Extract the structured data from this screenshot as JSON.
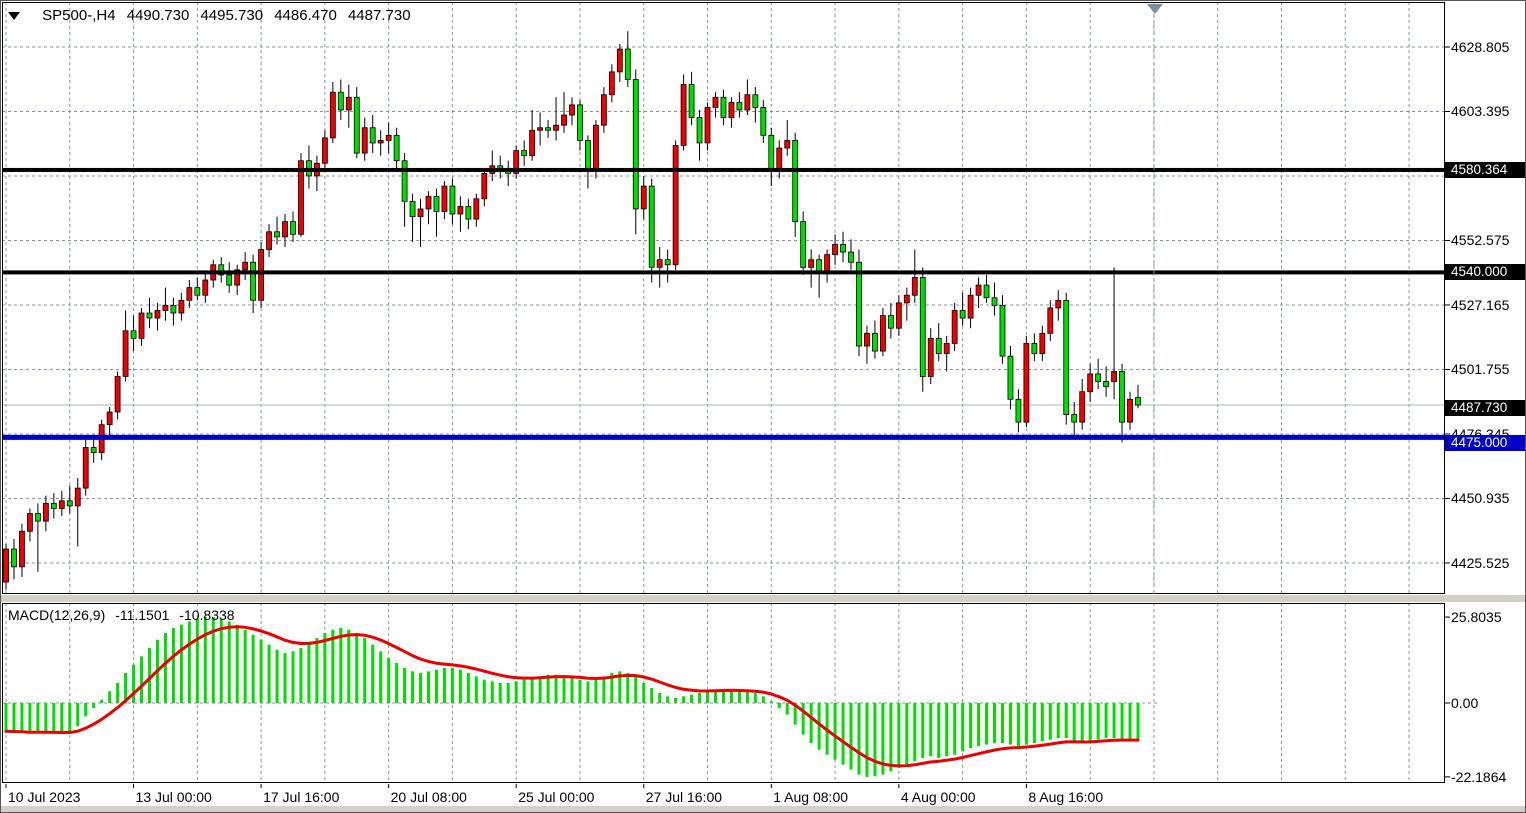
{
  "title_bar": {
    "symbol_period": "SP500-,H4",
    "open": "4490.730",
    "high": "4495.730",
    "low": "4486.470",
    "close": "4487.730"
  },
  "macd_panel": {
    "label": "MACD(12,26,9)",
    "macd_value": "-11.1501",
    "signal_value": "-10.8338",
    "y_ticks": [
      "25.8035",
      "0.00",
      "-22.1864"
    ],
    "y_tick_values": [
      25.8035,
      0,
      -22.1864
    ]
  },
  "price_axis": {
    "ticks": [
      4628.805,
      4603.395,
      4552.575,
      4527.165,
      4501.755,
      4476.345,
      4450.935,
      4425.525
    ],
    "hidden_grid_tick": 4577.985,
    "badges": [
      {
        "text": "4580.364",
        "value": 4580.364,
        "bg": "#000000",
        "dy": 0,
        "kind": "level"
      },
      {
        "text": "4540.000",
        "value": 4540.0,
        "bg": "#000000",
        "dy": 0,
        "kind": "level"
      },
      {
        "text": "4487.730",
        "value": 4487.73,
        "bg": "#000000",
        "dy": 3,
        "kind": "last-price"
      },
      {
        "text": "4475.000",
        "value": 4475.0,
        "bg": "#0000C8",
        "dy": 6,
        "kind": "level"
      }
    ]
  },
  "time_axis": {
    "labels": [
      {
        "text": "10 Jul 2023",
        "bar": 0
      },
      {
        "text": "13 Jul 00:00",
        "bar": 16
      },
      {
        "text": "17 Jul 16:00",
        "bar": 32
      },
      {
        "text": "20 Jul 08:00",
        "bar": 48
      },
      {
        "text": "25 Jul 00:00",
        "bar": 64
      },
      {
        "text": "27 Jul 16:00",
        "bar": 80
      },
      {
        "text": "1 Aug 08:00",
        "bar": 96
      },
      {
        "text": "4 Aug 00:00",
        "bar": 112
      },
      {
        "text": "8 Aug 16:00",
        "bar": 128
      }
    ]
  },
  "colors": {
    "bull": "#F00000",
    "bear": "#00DE00",
    "wick": "#000000",
    "grid": "#8494A6",
    "level_line": "#000000",
    "support_line": "#0000C8",
    "last_price_line": "#A9B5C0",
    "macd_hist": "#00DE00",
    "macd_signal": "#ED0000",
    "separator": "#D4D0C8",
    "pane_border": "#000000"
  },
  "chart_data": {
    "type": "candlestick_with_macd",
    "symbol": "SP500-",
    "timeframe": "H4",
    "last_price": 4487.73,
    "price_levels": [
      {
        "value": 4580.364,
        "color": "#000000",
        "thickness": 4
      },
      {
        "value": 4540.0,
        "color": "#000000",
        "thickness": 4
      },
      {
        "value": 4475.0,
        "color": "#0000C8",
        "thickness": 5
      }
    ],
    "price_axis_range": {
      "top": 4646.5,
      "bottom": 4412.0
    },
    "bars": [
      [
        4418,
        4433,
        4415,
        4431
      ],
      [
        4431,
        4435,
        4419,
        4424
      ],
      [
        4424,
        4441,
        4420,
        4438
      ],
      [
        4438,
        4447,
        4434,
        4445
      ],
      [
        4445,
        4449,
        4422,
        4442
      ],
      [
        4442,
        4452,
        4438,
        4449
      ],
      [
        4449,
        4453,
        4443,
        4447
      ],
      [
        4447,
        4454,
        4444,
        4450
      ],
      [
        4450,
        4456,
        4445,
        4448
      ],
      [
        4448,
        4459,
        4432,
        4455
      ],
      [
        4455,
        4474,
        4452,
        4471
      ],
      [
        4471,
        4476,
        4465,
        4469
      ],
      [
        4469,
        4482,
        4466,
        4480
      ],
      [
        4480,
        4487,
        4475,
        4485
      ],
      [
        4485,
        4501,
        4482,
        4499
      ],
      [
        4499,
        4525,
        4497,
        4517
      ],
      [
        4517,
        4523,
        4509,
        4514
      ],
      [
        4514,
        4526,
        4511,
        4524
      ],
      [
        4524,
        4530,
        4518,
        4522
      ],
      [
        4522,
        4528,
        4517,
        4525
      ],
      [
        4525,
        4534,
        4521,
        4527
      ],
      [
        4527,
        4530,
        4519,
        4524
      ],
      [
        4524,
        4532,
        4521,
        4529
      ],
      [
        4529,
        4537,
        4526,
        4534
      ],
      [
        4534,
        4538,
        4529,
        4531
      ],
      [
        4531,
        4540,
        4528,
        4537
      ],
      [
        4537,
        4545,
        4534,
        4543
      ],
      [
        4543,
        4546,
        4536,
        4539
      ],
      [
        4539,
        4544,
        4532,
        4535
      ],
      [
        4535,
        4543,
        4531,
        4541
      ],
      [
        4541,
        4548,
        4537,
        4544
      ],
      [
        4544,
        4547,
        4524,
        4529
      ],
      [
        4529,
        4552,
        4526,
        4549
      ],
      [
        4549,
        4559,
        4546,
        4556
      ],
      [
        4556,
        4562,
        4551,
        4554
      ],
      [
        4554,
        4563,
        4550,
        4560
      ],
      [
        4560,
        4564,
        4552,
        4555
      ],
      [
        4555,
        4587,
        4554,
        4584
      ],
      [
        4584,
        4590,
        4573,
        4578
      ],
      [
        4578,
        4586,
        4572,
        4583
      ],
      [
        4583,
        4596,
        4580,
        4593
      ],
      [
        4593,
        4615,
        4591,
        4611
      ],
      [
        4611,
        4616,
        4600,
        4604
      ],
      [
        4604,
        4614,
        4597,
        4609
      ],
      [
        4609,
        4613,
        4585,
        4587
      ],
      [
        4587,
        4601,
        4584,
        4597
      ],
      [
        4597,
        4602,
        4587,
        4591
      ],
      [
        4591,
        4596,
        4586,
        4592
      ],
      [
        4592,
        4599,
        4587,
        4594
      ],
      [
        4594,
        4597,
        4581,
        4584
      ],
      [
        4584,
        4587,
        4558,
        4568
      ],
      [
        4568,
        4571,
        4552,
        4562
      ],
      [
        4562,
        4569,
        4550,
        4565
      ],
      [
        4565,
        4572,
        4559,
        4570
      ],
      [
        4570,
        4573,
        4554,
        4564
      ],
      [
        4564,
        4576,
        4561,
        4574
      ],
      [
        4574,
        4577,
        4559,
        4563
      ],
      [
        4563,
        4570,
        4556,
        4566
      ],
      [
        4566,
        4569,
        4557,
        4561
      ],
      [
        4561,
        4571,
        4558,
        4569
      ],
      [
        4569,
        4581,
        4566,
        4579
      ],
      [
        4579,
        4588,
        4576,
        4582
      ],
      [
        4582,
        4586,
        4577,
        4581
      ],
      [
        4581,
        4584,
        4574,
        4579
      ],
      [
        4579,
        4590,
        4577,
        4588
      ],
      [
        4588,
        4592,
        4582,
        4586
      ],
      [
        4586,
        4604,
        4584,
        4596
      ],
      [
        4596,
        4603,
        4590,
        4597
      ],
      [
        4597,
        4600,
        4593,
        4596
      ],
      [
        4596,
        4609,
        4592,
        4598
      ],
      [
        4598,
        4611,
        4595,
        4602
      ],
      [
        4602,
        4609,
        4598,
        4606
      ],
      [
        4606,
        4608,
        4588,
        4592
      ],
      [
        4592,
        4594,
        4573,
        4580
      ],
      [
        4580,
        4600,
        4577,
        4598
      ],
      [
        4598,
        4613,
        4595,
        4610
      ],
      [
        4610,
        4622,
        4607,
        4619
      ],
      [
        4619,
        4630,
        4615,
        4628
      ],
      [
        4628,
        4635,
        4613,
        4616
      ],
      [
        4616,
        4620,
        4555,
        4565
      ],
      [
        4565,
        4578,
        4561,
        4574
      ],
      [
        4574,
        4577,
        4536,
        4542
      ],
      [
        4542,
        4550,
        4534,
        4545
      ],
      [
        4545,
        4549,
        4536,
        4543
      ],
      [
        4543,
        4592,
        4541,
        4590
      ],
      [
        4590,
        4618,
        4588,
        4614
      ],
      [
        4614,
        4619,
        4598,
        4601
      ],
      [
        4601,
        4604,
        4584,
        4591
      ],
      [
        4591,
        4607,
        4588,
        4605
      ],
      [
        4605,
        4611,
        4601,
        4609
      ],
      [
        4609,
        4612,
        4598,
        4601
      ],
      [
        4601,
        4609,
        4597,
        4607
      ],
      [
        4607,
        4611,
        4601,
        4604
      ],
      [
        4604,
        4616,
        4602,
        4610
      ],
      [
        4610,
        4613,
        4599,
        4605
      ],
      [
        4605,
        4608,
        4591,
        4594
      ],
      [
        4594,
        4597,
        4574,
        4580
      ],
      [
        4580,
        4592,
        4577,
        4589
      ],
      [
        4589,
        4600,
        4586,
        4592
      ],
      [
        4592,
        4595,
        4554,
        4560
      ],
      [
        4560,
        4564,
        4539,
        4542
      ],
      [
        4542,
        4549,
        4534,
        4545
      ],
      [
        4545,
        4547,
        4530,
        4540
      ],
      [
        4540,
        4549,
        4536,
        4547
      ],
      [
        4547,
        4555,
        4543,
        4551
      ],
      [
        4551,
        4556,
        4544,
        4548
      ],
      [
        4548,
        4553,
        4541,
        4544
      ],
      [
        4544,
        4549,
        4507,
        4511
      ],
      [
        4511,
        4519,
        4504,
        4516
      ],
      [
        4516,
        4521,
        4506,
        4509
      ],
      [
        4509,
        4526,
        4507,
        4523
      ],
      [
        4523,
        4528,
        4514,
        4518
      ],
      [
        4518,
        4531,
        4515,
        4528
      ],
      [
        4528,
        4534,
        4521,
        4531
      ],
      [
        4531,
        4549,
        4528,
        4538
      ],
      [
        4538,
        4542,
        4493,
        4499
      ],
      [
        4499,
        4518,
        4496,
        4514
      ],
      [
        4514,
        4520,
        4505,
        4508
      ],
      [
        4508,
        4515,
        4501,
        4512
      ],
      [
        4512,
        4528,
        4509,
        4525
      ],
      [
        4525,
        4532,
        4519,
        4522
      ],
      [
        4522,
        4534,
        4518,
        4531
      ],
      [
        4531,
        4538,
        4526,
        4535
      ],
      [
        4535,
        4539,
        4528,
        4530
      ],
      [
        4530,
        4536,
        4523,
        4527
      ],
      [
        4527,
        4531,
        4504,
        4507
      ],
      [
        4507,
        4511,
        4486,
        4490
      ],
      [
        4490,
        4494,
        4477,
        4481
      ],
      [
        4481,
        4515,
        4479,
        4512
      ],
      [
        4512,
        4516,
        4505,
        4508
      ],
      [
        4508,
        4519,
        4505,
        4516
      ],
      [
        4516,
        4529,
        4513,
        4526
      ],
      [
        4526,
        4533,
        4521,
        4529
      ],
      [
        4529,
        4532,
        4480,
        4484
      ],
      [
        4484,
        4489,
        4475,
        4481
      ],
      [
        4481,
        4498,
        4478,
        4493
      ],
      [
        4493,
        4504,
        4489,
        4500
      ],
      [
        4500,
        4506,
        4494,
        4497
      ],
      [
        4497,
        4503,
        4491,
        4495
      ],
      [
        4497,
        4542,
        4490,
        4501
      ],
      [
        4501,
        4504,
        4473,
        4481
      ],
      [
        4481,
        4493,
        4478,
        4490
      ],
      [
        4490.73,
        4495.73,
        4486.47,
        4487.73
      ]
    ],
    "macd": {
      "params": [
        12,
        26,
        9
      ],
      "last_macd": -11.1501,
      "last_signal": -10.8338,
      "signal_ema_period": 9,
      "hist": [
        -8.5,
        -8.8,
        -9.0,
        -9.2,
        -9.0,
        -8.8,
        -8.9,
        -9.0,
        -8.8,
        -7.0,
        -4.0,
        -1.5,
        1.0,
        3.5,
        6.0,
        9.0,
        11.5,
        14.0,
        16.5,
        19.0,
        21.0,
        22.5,
        23.5,
        24.5,
        25.3,
        25.8,
        25.8,
        25.3,
        24.5,
        23.5,
        22.0,
        20.5,
        19.0,
        17.5,
        16.0,
        15.0,
        15.5,
        16.5,
        18.0,
        19.5,
        21.0,
        22.0,
        22.5,
        22.0,
        21.0,
        19.5,
        17.5,
        15.5,
        13.5,
        12.0,
        10.5,
        9.5,
        9.0,
        9.5,
        10.0,
        10.5,
        10.5,
        10.0,
        9.0,
        8.0,
        7.0,
        6.5,
        6.0,
        6.0,
        6.5,
        7.0,
        7.5,
        8.0,
        8.5,
        8.5,
        8.0,
        7.5,
        7.0,
        6.5,
        7.0,
        8.0,
        9.0,
        9.5,
        9.0,
        8.0,
        6.0,
        4.5,
        3.0,
        2.0,
        1.5,
        2.0,
        2.5,
        3.0,
        3.5,
        4.0,
        4.0,
        4.0,
        3.5,
        3.5,
        3.0,
        2.0,
        0.5,
        -1.5,
        -3.5,
        -6.5,
        -9.5,
        -12.0,
        -14.0,
        -15.5,
        -17.0,
        -18.5,
        -20.0,
        -21.5,
        -22.2,
        -22.0,
        -21.5,
        -20.5,
        -19.5,
        -18.5,
        -17.5,
        -16.5,
        -16.0,
        -16.5,
        -16.0,
        -15.5,
        -14.5,
        -13.5,
        -13.0,
        -12.5,
        -12.0,
        -12.0,
        -12.5,
        -13.0,
        -12.5,
        -12.0,
        -11.5,
        -11.0,
        -10.5,
        -10.5,
        -11.5,
        -12.0,
        -11.5,
        -11.0,
        -10.5,
        -10.5,
        -11.0,
        -11.2,
        -11.15
      ]
    }
  }
}
